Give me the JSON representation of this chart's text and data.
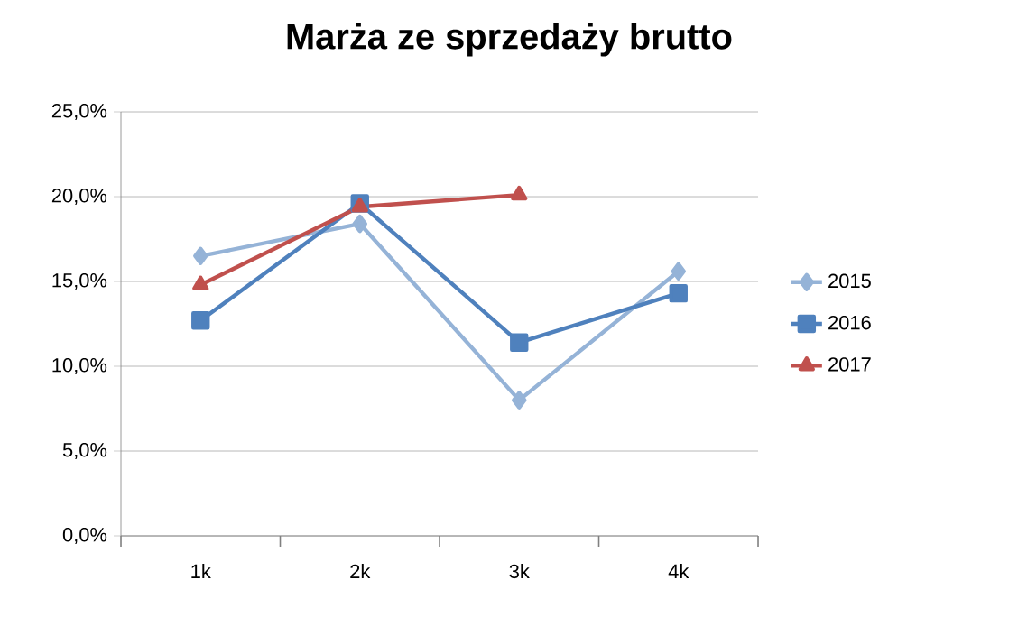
{
  "chart_data": {
    "type": "line",
    "title": "Marża ze sprzedaży brutto",
    "categories": [
      "1k",
      "2k",
      "3k",
      "4k"
    ],
    "series": [
      {
        "name": "2015",
        "color": "#95b3d7",
        "marker": "diamond",
        "values": [
          16.5,
          18.4,
          8.0,
          15.6
        ]
      },
      {
        "name": "2016",
        "color": "#4f81bd",
        "marker": "square",
        "values": [
          12.7,
          19.6,
          11.4,
          14.3
        ]
      },
      {
        "name": "2017",
        "color": "#c0504d",
        "marker": "triangle",
        "values": [
          14.8,
          19.4,
          20.1,
          null
        ]
      }
    ],
    "ylim": [
      0,
      25
    ],
    "yticks": [
      {
        "value": 0,
        "label": "0,0%"
      },
      {
        "value": 5,
        "label": "5,0%"
      },
      {
        "value": 10,
        "label": "10,0%"
      },
      {
        "value": 15,
        "label": "15,0%"
      },
      {
        "value": 20,
        "label": "20,0%"
      },
      {
        "value": 25,
        "label": "25,0%"
      }
    ],
    "grid": "y",
    "legend": "right",
    "line_style": "solid"
  }
}
